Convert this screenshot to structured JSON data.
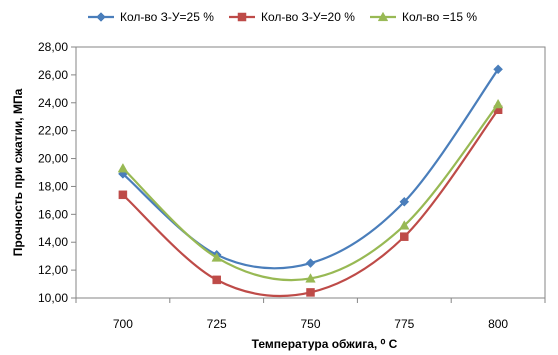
{
  "chart_data": {
    "type": "line",
    "smooth": true,
    "title": "",
    "xlabel": "Температура обжига, ⁰ С",
    "ylabel": "Прочность при сжатии, МПа",
    "categories": [
      "700",
      "725",
      "750",
      "775",
      "800"
    ],
    "ylim": [
      10,
      28
    ],
    "ytick_step": 2,
    "ytick_labels": [
      "10,00",
      "12,00",
      "14,00",
      "16,00",
      "18,00",
      "20,00",
      "22,00",
      "24,00",
      "26,00",
      "28,00"
    ],
    "grid": false,
    "legend_position": "top",
    "series": [
      {
        "name": "Кол-во З-У=25 %",
        "values": [
          18.9,
          13.1,
          12.5,
          16.9,
          26.4
        ],
        "color": "#4a7ebb",
        "marker": "diamond"
      },
      {
        "name": "Кол-во З-У=20 %",
        "values": [
          17.4,
          11.3,
          10.4,
          14.4,
          23.5
        ],
        "color": "#be4b48",
        "marker": "square"
      },
      {
        "name": "Кол-во =15 %",
        "values": [
          19.3,
          12.9,
          11.4,
          15.2,
          23.9
        ],
        "color": "#98b954",
        "marker": "triangle"
      }
    ]
  }
}
